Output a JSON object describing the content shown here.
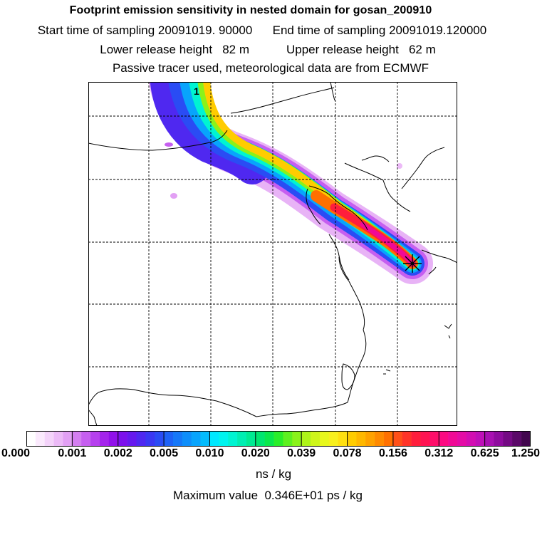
{
  "header": {
    "title": "Footprint emission sensitivity in nested domain for gosan_200910",
    "line2": "Start time of sampling 20091019. 90000      End time of sampling 20091019.120000",
    "line3": "Lower release height   82 m           Upper release height   62 m",
    "line4": "Passive tracer used, meteorological data are from ECMWF"
  },
  "map": {
    "label_one": "1",
    "receptor_marker": "star-marker",
    "grid_columns": 6,
    "grid_rows": 6
  },
  "colorbar": {
    "tick_labels": [
      "0.000",
      "0.001",
      "0.002",
      "0.005",
      "0.010",
      "0.020",
      "0.039",
      "0.078",
      "0.156",
      "0.312",
      "0.625",
      "1.250"
    ],
    "colors": [
      "#ffffff",
      "#fbeafd",
      "#f4d3fa",
      "#ecbaf7",
      "#e2a0f4",
      "#d47ef1",
      "#c65ff0",
      "#b640ee",
      "#a424ec",
      "#9110ea",
      "#7c10ec",
      "#6619ee",
      "#4f28f0",
      "#3a38f2",
      "#2a4cf4",
      "#1e62f6",
      "#1678f8",
      "#0e8efa",
      "#08a4fc",
      "#04bcfd",
      "#00e8ff",
      "#00f4ef",
      "#00f4d2",
      "#00eeb2",
      "#00ea92",
      "#00e670",
      "#0ae84c",
      "#2aee2a",
      "#5ef020",
      "#8af21a",
      "#aef418",
      "#cef61a",
      "#e8f81c",
      "#f8f01e",
      "#ffe010",
      "#ffcc00",
      "#ffb800",
      "#ffa200",
      "#ff8a00",
      "#ff7000",
      "#ff5018",
      "#ff3428",
      "#ff1e3c",
      "#ff1452",
      "#ff0e6a",
      "#fc0a82",
      "#f00a96",
      "#e40ca6",
      "#d20eb2",
      "#be10b8",
      "#a810b2",
      "#8e0c9e",
      "#740a84",
      "#5a0868",
      "#42064e"
    ],
    "unit": "ns / kg",
    "max_value_text": "Maximum value  0.346E+01 ps / kg"
  }
}
